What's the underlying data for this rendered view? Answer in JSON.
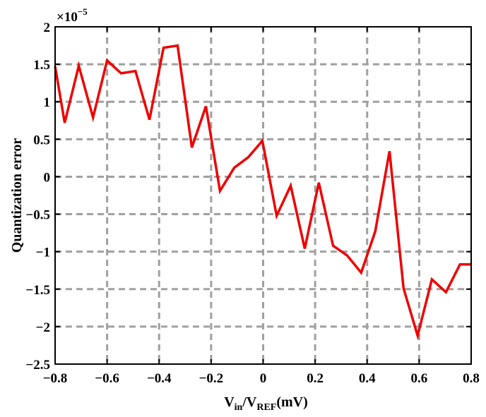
{
  "chart_data": {
    "type": "line",
    "title": "",
    "xlabel": {
      "parts": [
        {
          "text": "V",
          "sub": false
        },
        {
          "text": "in",
          "sub": true
        },
        {
          "text": "/V",
          "sub": false
        },
        {
          "text": "REF",
          "sub": true
        },
        {
          "text": "(mV)",
          "sub": false
        }
      ]
    },
    "ylabel": "Quantization error",
    "y_exponent": {
      "prefix": "×10",
      "power": "−5"
    },
    "xlim": [
      -0.8,
      0.8
    ],
    "ylim": [
      -2.5,
      2
    ],
    "y_scale_factor": 1e-05,
    "xticks": [
      -0.8,
      -0.6,
      -0.4,
      -0.2,
      0,
      0.2,
      0.4,
      0.6,
      0.8
    ],
    "xtick_labels": [
      "−0.8",
      "−0.6",
      "−0.4",
      "−0.2",
      "0",
      "0.2",
      "0.4",
      "0.6",
      "0.8"
    ],
    "yticks": [
      2,
      1.5,
      1,
      0.5,
      0,
      -0.5,
      -1,
      -1.5,
      -2,
      -2.5
    ],
    "ytick_labels": [
      "2",
      "1.5",
      "1",
      "0.5",
      "0",
      "−0.5",
      "−1",
      "−1.5",
      "−2",
      "−2.5"
    ],
    "grid": true,
    "grid_style": "dashed",
    "grid_color": "#a0a0a0",
    "series": [
      {
        "color": "#ee0000",
        "x": [
          -0.8,
          -0.763,
          -0.709,
          -0.654,
          -0.6,
          -0.546,
          -0.491,
          -0.437,
          -0.383,
          -0.329,
          -0.274,
          -0.22,
          -0.166,
          -0.111,
          -0.057,
          -0.003,
          0.052,
          0.106,
          0.16,
          0.214,
          0.269,
          0.323,
          0.377,
          0.431,
          0.486,
          0.54,
          0.594,
          0.649,
          0.703,
          0.757,
          0.8
        ],
        "y": [
          1.47,
          0.72,
          1.48,
          0.79,
          1.55,
          1.38,
          1.41,
          0.76,
          1.72,
          1.75,
          0.39,
          0.94,
          -0.19,
          0.12,
          0.26,
          0.48,
          -0.52,
          -0.12,
          -0.96,
          -0.08,
          -0.92,
          -1.05,
          -1.28,
          -0.73,
          0.34,
          -1.49,
          -2.12,
          -1.37,
          -1.54,
          -1.17,
          -1.17
        ]
      }
    ]
  }
}
